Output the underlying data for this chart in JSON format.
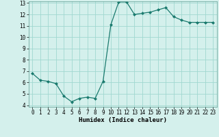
{
  "x": [
    0,
    1,
    2,
    3,
    4,
    5,
    6,
    7,
    8,
    9,
    10,
    11,
    12,
    13,
    14,
    15,
    16,
    17,
    18,
    19,
    20,
    21,
    22,
    23
  ],
  "y": [
    6.8,
    6.2,
    6.1,
    5.9,
    4.8,
    4.3,
    4.6,
    4.7,
    4.6,
    6.1,
    11.1,
    13.1,
    13.1,
    12.0,
    12.1,
    12.2,
    12.4,
    12.6,
    11.8,
    11.5,
    11.3,
    11.3,
    11.3,
    11.3
  ],
  "line_color": "#1a7a6e",
  "marker_color": "#1a7a6e",
  "bg_color": "#d4f0ec",
  "grid_color": "#a0d8d0",
  "xlabel": "Humidex (Indice chaleur)",
  "ylim": [
    4,
    13
  ],
  "xlim": [
    -0.5,
    23.5
  ],
  "yticks": [
    4,
    5,
    6,
    7,
    8,
    9,
    10,
    11,
    12,
    13
  ],
  "xticks": [
    0,
    1,
    2,
    3,
    4,
    5,
    6,
    7,
    8,
    9,
    10,
    11,
    12,
    13,
    14,
    15,
    16,
    17,
    18,
    19,
    20,
    21,
    22,
    23
  ],
  "xtick_labels": [
    "0",
    "1",
    "2",
    "3",
    "4",
    "5",
    "6",
    "7",
    "8",
    "9",
    "10",
    "11",
    "12",
    "13",
    "14",
    "15",
    "16",
    "17",
    "18",
    "19",
    "20",
    "21",
    "22",
    "23"
  ],
  "xlabel_fontsize": 6.5,
  "tick_fontsize": 5.5
}
